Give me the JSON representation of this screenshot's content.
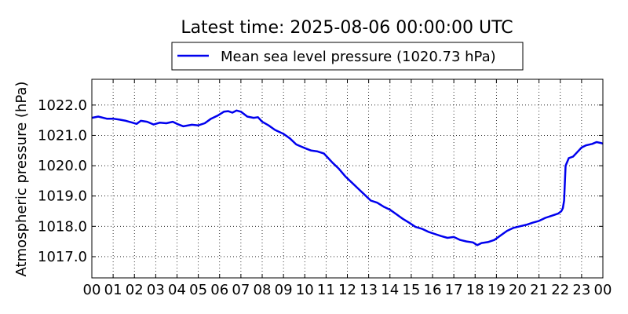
{
  "chart_data": {
    "type": "line",
    "title": "Latest time: 2025-08-06 00:00:00 UTC",
    "xlabel": "",
    "ylabel": "Atmospheric pressure (hPa)",
    "x_tick_labels": [
      "00",
      "01",
      "02",
      "03",
      "04",
      "05",
      "06",
      "07",
      "08",
      "09",
      "10",
      "11",
      "12",
      "13",
      "14",
      "15",
      "16",
      "17",
      "18",
      "19",
      "20",
      "21",
      "22",
      "23",
      "00"
    ],
    "x_range_hours": [
      0,
      24
    ],
    "ylim": [
      1016.3,
      1022.85
    ],
    "y_ticks": [
      1017.0,
      1018.0,
      1019.0,
      1020.0,
      1021.0,
      1022.0
    ],
    "y_tick_labels": [
      "1017.0",
      "1018.0",
      "1019.0",
      "1020.0",
      "1021.0",
      "1022.0"
    ],
    "grid": true,
    "legend_position": "top-center-outside",
    "series": [
      {
        "name": "Mean sea level pressure (1020.73 hPa)",
        "color": "#0000ee",
        "x": [
          0,
          0.3,
          0.7,
          1.0,
          1.3,
          1.6,
          1.9,
          2.1,
          2.3,
          2.6,
          2.9,
          3.2,
          3.5,
          3.8,
          4.0,
          4.3,
          4.7,
          5.0,
          5.3,
          5.6,
          5.9,
          6.2,
          6.4,
          6.6,
          6.8,
          7.0,
          7.3,
          7.6,
          7.8,
          8.0,
          8.3,
          8.6,
          9.0,
          9.3,
          9.6,
          10.0,
          10.3,
          10.6,
          10.9,
          11.1,
          11.3,
          11.6,
          11.9,
          12.2,
          12.5,
          12.8,
          13.1,
          13.4,
          13.7,
          14.0,
          14.3,
          14.6,
          14.9,
          15.2,
          15.5,
          15.8,
          16.1,
          16.4,
          16.7,
          17.0,
          17.3,
          17.6,
          17.9,
          18.1,
          18.3,
          18.6,
          18.9,
          19.2,
          19.5,
          19.8,
          20.1,
          20.4,
          20.7,
          21.0,
          21.3,
          21.6,
          21.9,
          22.05,
          22.12,
          22.18,
          22.25,
          22.4,
          22.6,
          22.8,
          23.0,
          23.2,
          23.5,
          23.7,
          23.9,
          24.0
        ],
        "y": [
          1021.58,
          1021.62,
          1021.55,
          1021.55,
          1021.52,
          1021.48,
          1021.42,
          1021.38,
          1021.48,
          1021.45,
          1021.36,
          1021.42,
          1021.4,
          1021.45,
          1021.38,
          1021.3,
          1021.35,
          1021.33,
          1021.4,
          1021.55,
          1021.65,
          1021.78,
          1021.8,
          1021.75,
          1021.82,
          1021.78,
          1021.62,
          1021.58,
          1021.6,
          1021.45,
          1021.33,
          1021.18,
          1021.05,
          1020.9,
          1020.7,
          1020.58,
          1020.5,
          1020.47,
          1020.4,
          1020.25,
          1020.1,
          1019.9,
          1019.65,
          1019.45,
          1019.25,
          1019.05,
          1018.85,
          1018.78,
          1018.65,
          1018.55,
          1018.4,
          1018.25,
          1018.12,
          1017.98,
          1017.92,
          1017.82,
          1017.75,
          1017.68,
          1017.62,
          1017.65,
          1017.55,
          1017.5,
          1017.47,
          1017.38,
          1017.45,
          1017.48,
          1017.55,
          1017.7,
          1017.85,
          1017.95,
          1018.0,
          1018.05,
          1018.12,
          1018.18,
          1018.28,
          1018.35,
          1018.42,
          1018.5,
          1018.6,
          1018.85,
          1020.0,
          1020.25,
          1020.3,
          1020.45,
          1020.6,
          1020.67,
          1020.72,
          1020.78,
          1020.75,
          1020.73
        ]
      }
    ]
  }
}
